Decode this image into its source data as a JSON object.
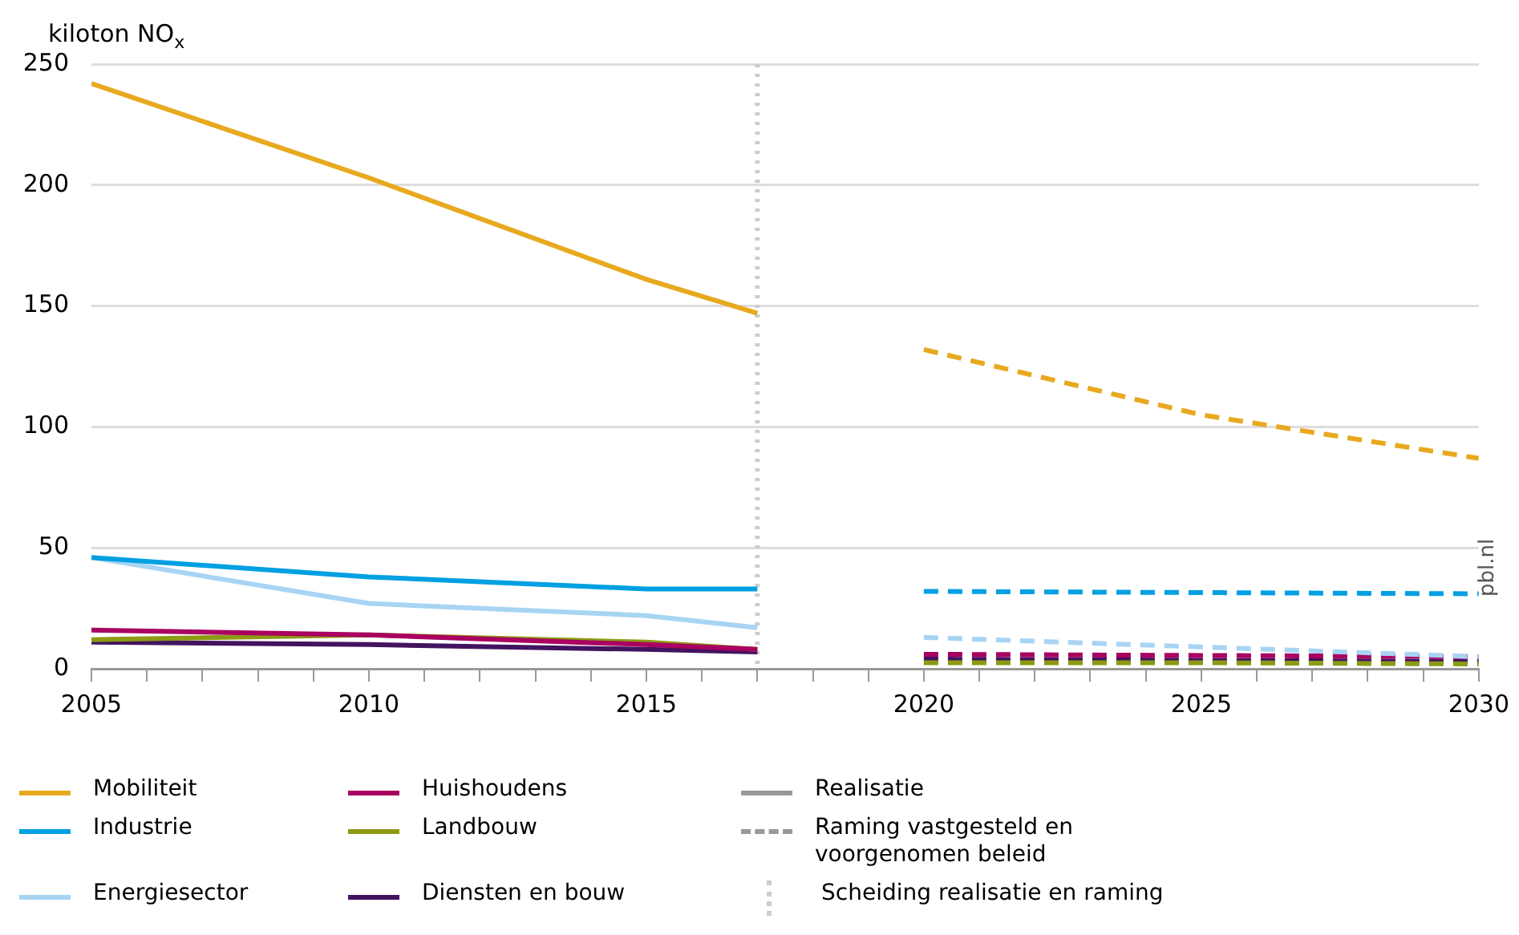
{
  "chart_data": {
    "type": "line",
    "ylabel": "kiloton NO$_{x}$",
    "xlim": [
      2005,
      2030
    ],
    "xticks": [
      2005,
      {
        "value": 2006,
        "label": null
      },
      {
        "value": 2007,
        "label": null
      },
      {
        "value": 2008,
        "label": null
      },
      {
        "value": 2009,
        "label": null
      },
      2010,
      {
        "value": 2011,
        "label": null
      },
      {
        "value": 2012,
        "label": null
      },
      {
        "value": 2013,
        "label": null
      },
      {
        "value": 2014,
        "label": null
      },
      2015,
      {
        "value": 2016,
        "label": null
      },
      {
        "value": 2017,
        "label": null
      },
      {
        "value": 2018,
        "label": null
      },
      {
        "value": 2019,
        "label": null
      },
      2020,
      {
        "value": 2021,
        "label": null
      },
      {
        "value": 2022,
        "label": null
      },
      {
        "value": 2023,
        "label": null
      },
      {
        "value": 2024,
        "label": null
      },
      2025,
      {
        "value": 2026,
        "label": null
      },
      {
        "value": 2027,
        "label": null
      },
      {
        "value": 2028,
        "label": null
      },
      {
        "value": 2029,
        "label": null
      },
      2030
    ],
    "ylim": [
      0,
      250
    ],
    "yticks": [
      0,
      50,
      100,
      150,
      200,
      250
    ],
    "grid": "y",
    "legend": "bottom",
    "series": [
      {
        "name": "Mobiliteit",
        "color": "#e8a91f",
        "x": [
          2005,
          2010,
          2015,
          2017
        ],
        "values": [
          242,
          203,
          161,
          147
        ]
      },
      {
        "name": "Industrie",
        "color": "#00a0e2",
        "x": [
          2005,
          2010,
          2015,
          2017
        ],
        "values": [
          46,
          38,
          33,
          33
        ]
      },
      {
        "name": "Energiesector",
        "color": "#a8d4f3",
        "x": [
          2005,
          2010,
          2015,
          2017
        ],
        "values": [
          46,
          27,
          22,
          17
        ]
      },
      {
        "name": "Huishoudens",
        "color": "#a90061",
        "x": [
          2005,
          2010,
          2015,
          2017
        ],
        "values": [
          16,
          14,
          10,
          8
        ]
      },
      {
        "name": "Landbouw",
        "color": "#8c9a14",
        "x": [
          2005,
          2010,
          2015,
          2017
        ],
        "values": [
          12,
          14,
          11,
          8
        ]
      },
      {
        "name": "Diensten en bouw",
        "color": "#42145f",
        "x": [
          2005,
          2010,
          2015,
          2017
        ],
        "values": [
          11,
          10,
          8,
          7
        ]
      },
      {
        "color": "#e8a91f",
        "line_style": "dashed",
        "x": [
          2020,
          2025,
          2030
        ],
        "values": [
          132,
          105,
          87
        ]
      },
      {
        "color": "#00a0e2",
        "line_style": "dashed",
        "x": [
          2020,
          2025,
          2030
        ],
        "values": [
          32,
          31.5,
          31
        ]
      },
      {
        "color": "#a8d4f3",
        "line_style": "dashed",
        "x": [
          2020,
          2025,
          2030
        ],
        "values": [
          13,
          9,
          5
        ]
      },
      {
        "color": "#a90061",
        "line_style": "dashed",
        "x": [
          2020,
          2025,
          2030
        ],
        "values": [
          6,
          5.5,
          5
        ]
      },
      {
        "color": "#8c9a14",
        "line_style": "dashed",
        "x": [
          2020,
          2025,
          2030
        ],
        "values": [
          2.5,
          2.5,
          2
        ]
      },
      {
        "color": "#42145f",
        "line_style": "dashed",
        "x": [
          2020,
          2025,
          2030
        ],
        "values": [
          4,
          3.5,
          3
        ]
      }
    ],
    "ref_lines": [
      {
        "axis": "x",
        "value": 2017,
        "label": "Scheiding realisatie en raming",
        "color": "#cccccc",
        "line_style": "dotted"
      }
    ],
    "annotations": [
      "Realisatie",
      "Raming vastgesteld en voorgenomen beleid",
      "pbl.nl"
    ]
  }
}
